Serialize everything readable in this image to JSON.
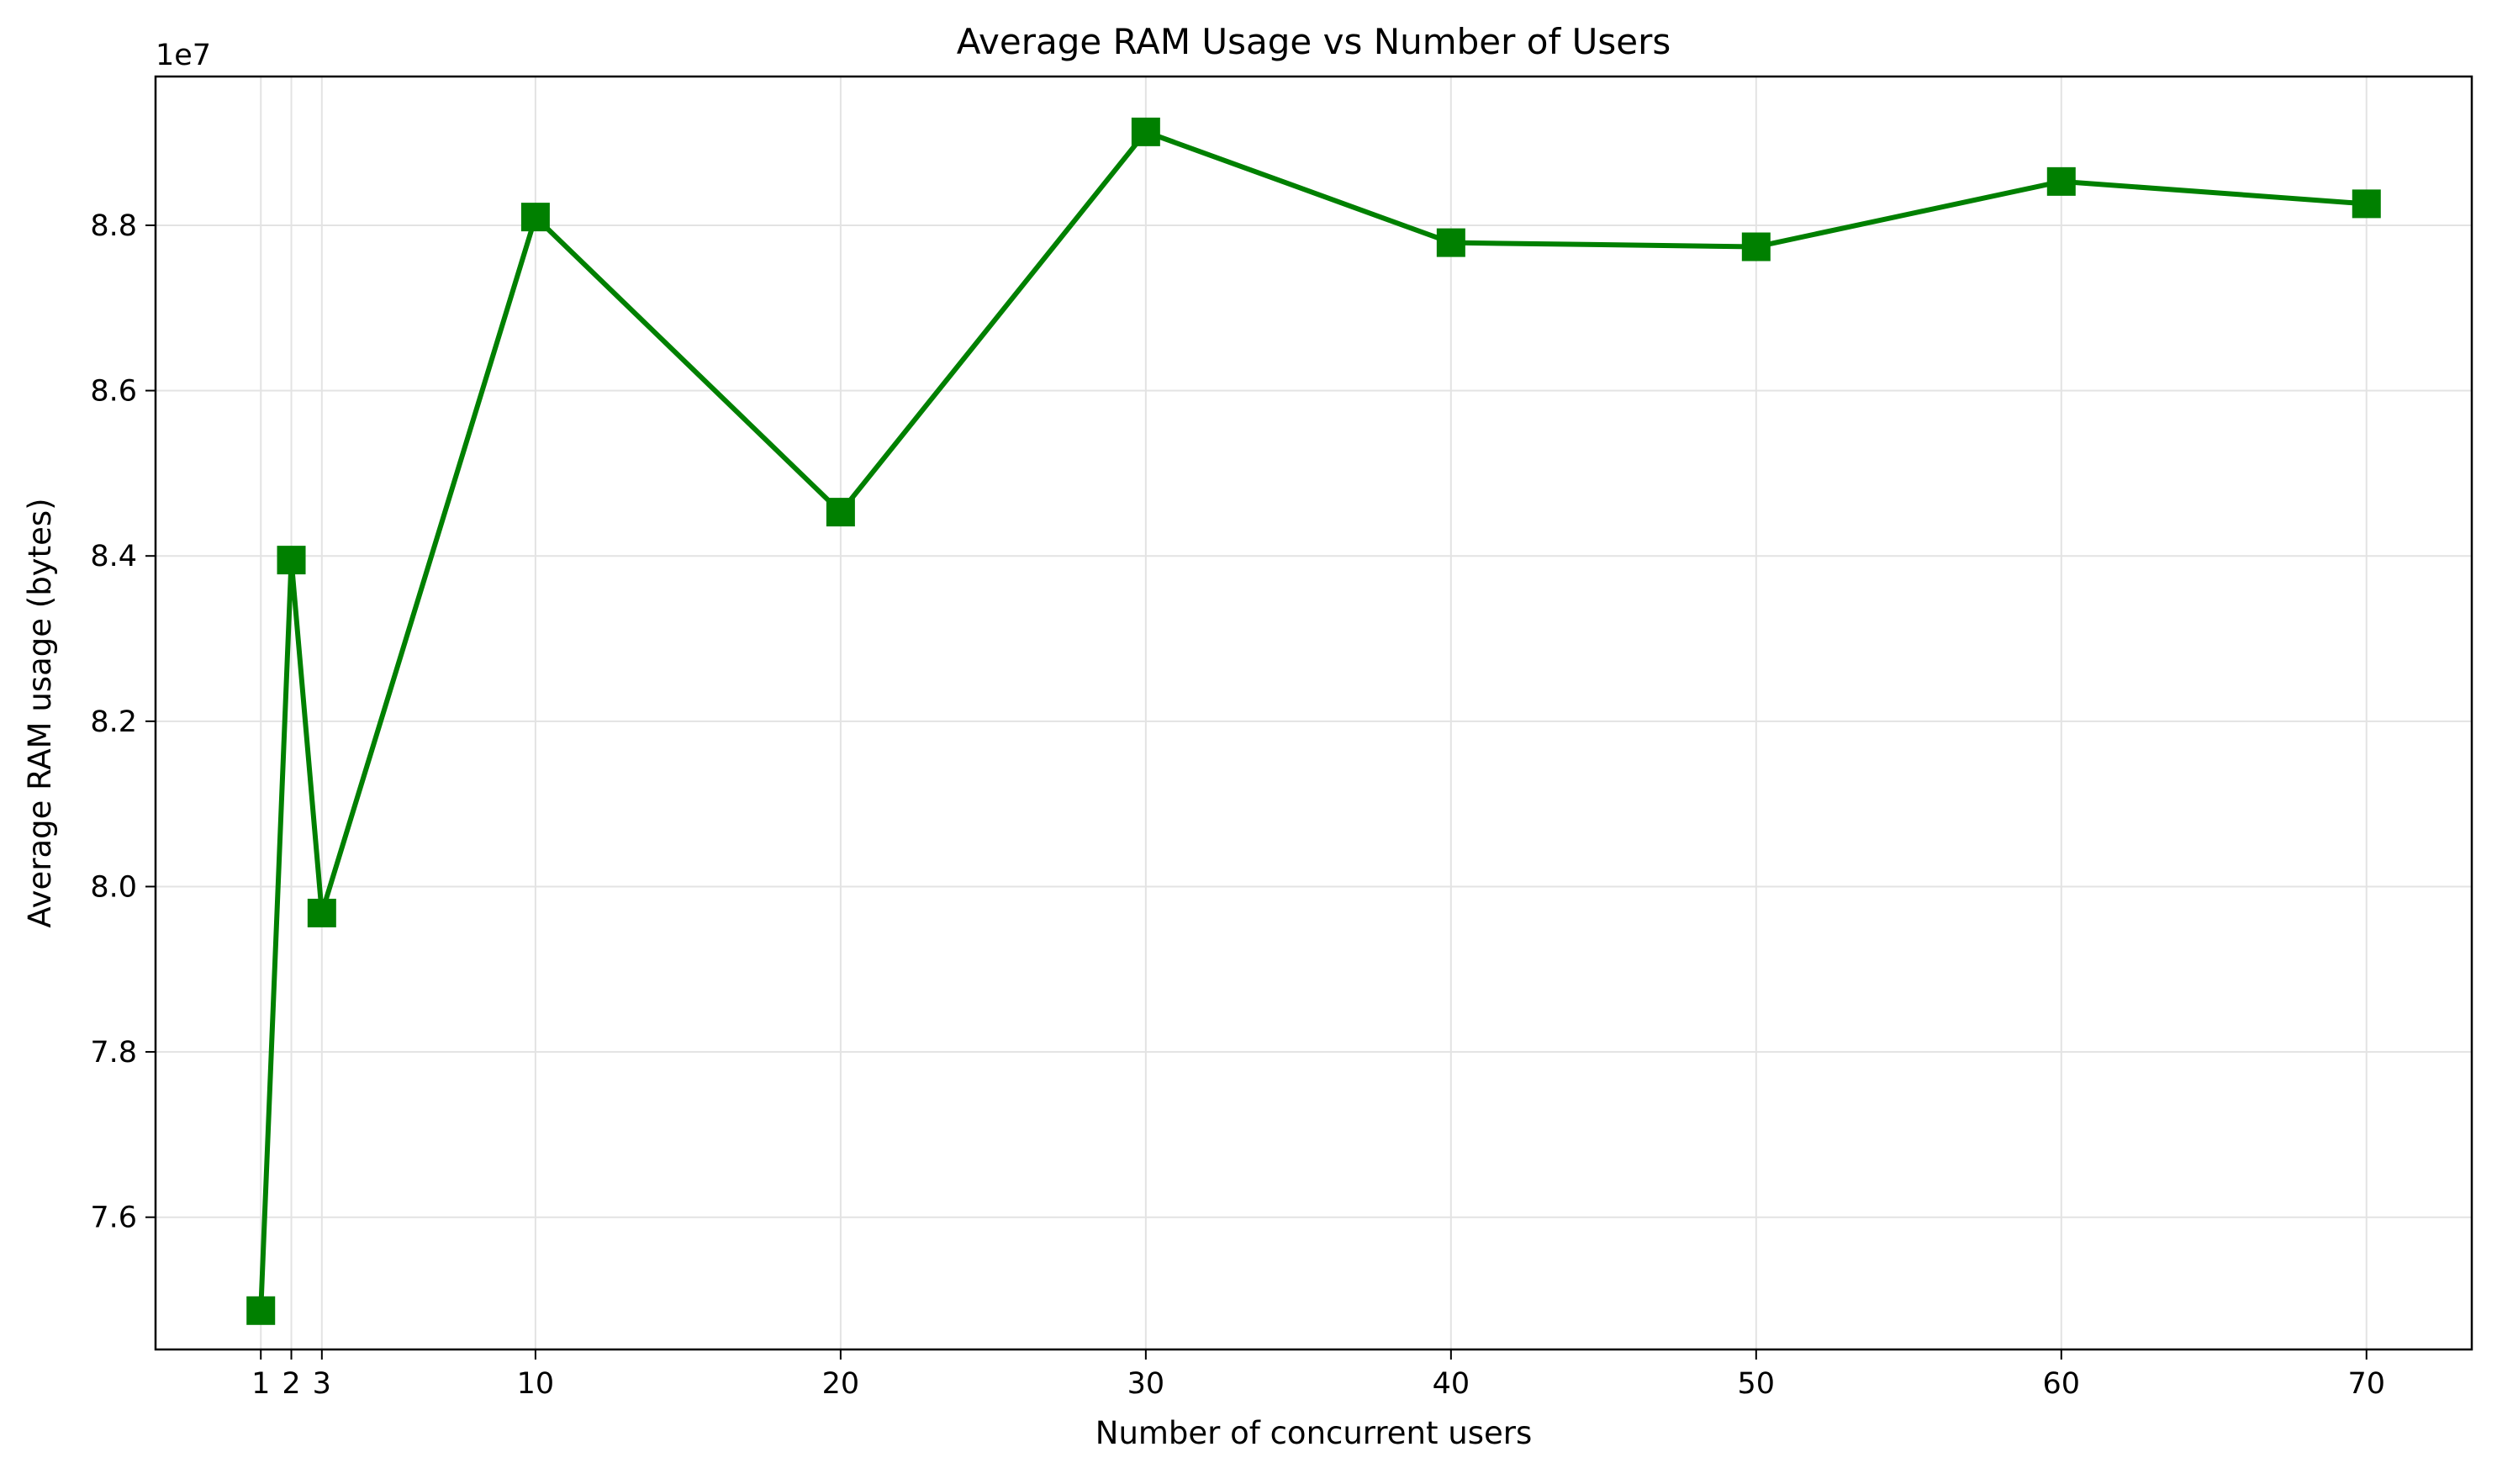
{
  "chart_data": {
    "type": "line",
    "title": "Average RAM Usage vs Number of Users",
    "xlabel": "Number of concurrent users",
    "ylabel": "Average RAM usage (bytes)",
    "y_offset_text": "1e7",
    "y_scale_factor": 10000000,
    "xlim": [
      -2.45,
      73.45
    ],
    "ylim": [
      74.4,
      89.8
    ],
    "x_ticks": [
      1,
      2,
      3,
      10,
      20,
      30,
      40,
      50,
      60,
      70
    ],
    "x_tick_labels": [
      "1",
      "2",
      "3",
      "10",
      "20",
      "30",
      "40",
      "50",
      "60",
      "70"
    ],
    "y_ticks": [
      7.6,
      7.8,
      8.0,
      8.2,
      8.4,
      8.6,
      8.8
    ],
    "y_tick_labels": [
      "7.6",
      "7.8",
      "8.0",
      "8.2",
      "8.4",
      "8.6",
      "8.8"
    ],
    "grid": true,
    "marker": "square",
    "color": "#008000",
    "series": [
      {
        "x": [
          1,
          2,
          3,
          10,
          20,
          30,
          40,
          50,
          60,
          70
        ],
        "y": [
          74.87,
          83.95,
          79.68,
          88.1,
          84.53,
          89.13,
          87.79,
          87.74,
          88.53,
          88.26
        ]
      }
    ]
  }
}
